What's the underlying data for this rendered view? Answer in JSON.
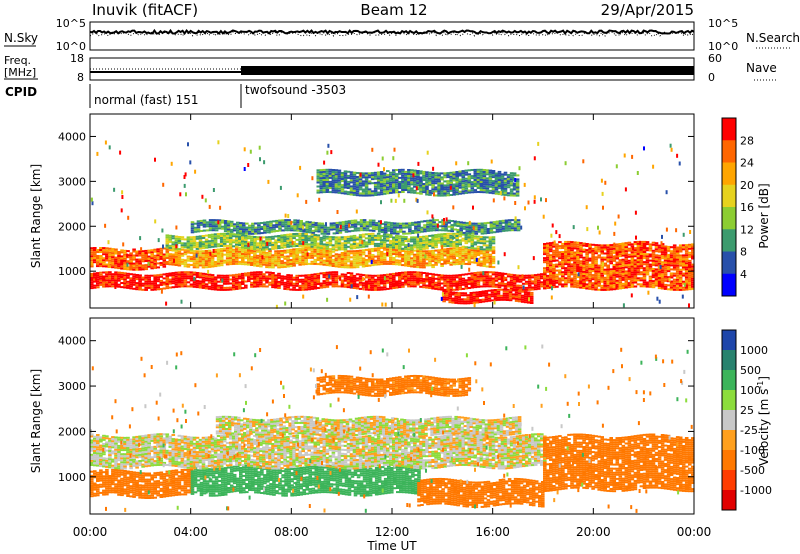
{
  "header": {
    "station": "Inuvik (fitACF)",
    "beam": "Beam 12",
    "date": "29/Apr/2015"
  },
  "top_panels": {
    "nsky_label": "N.Sky",
    "nsky_ticks": [
      "10^5",
      "10^0"
    ],
    "nsearch_label": "N.Search",
    "nsearch_ticks": [
      "10^5",
      "10^0"
    ],
    "freq_label_1": "Freq.",
    "freq_label_2": "[MHz]",
    "freq_ticks": [
      "18",
      "8"
    ],
    "nave_label": "Nave",
    "nave_ticks": [
      "60",
      "0"
    ],
    "cpid_label": "CPID",
    "modes": [
      {
        "name": "normal (fast) 151",
        "start_hour": 0,
        "end_hour": 6
      },
      {
        "name": "twofsound -3503",
        "start_hour": 6,
        "end_hour": 24
      }
    ]
  },
  "x_axis": {
    "label": "Time UT",
    "ticks": [
      "00:00",
      "04:00",
      "08:00",
      "12:00",
      "16:00",
      "20:00",
      "00:00"
    ]
  },
  "power_colorbar": {
    "label": "Power [dB]",
    "ticks": [
      "28",
      "24",
      "20",
      "16",
      "12",
      "8",
      "4"
    ],
    "colors": [
      "#ff0000",
      "#ff6600",
      "#ffa500",
      "#e6d21e",
      "#8ccd32",
      "#3c9b6e",
      "#2850aa",
      "#0000ff"
    ]
  },
  "velocity_colorbar": {
    "label": "Velocity [m s^-1]",
    "ticks": [
      "1000",
      "500",
      "100",
      "25",
      "-25",
      "-100",
      "-500",
      "-1000"
    ],
    "colors": [
      "#1e46aa",
      "#28826e",
      "#3cb45a",
      "#8cdc3c",
      "#c8c8c8",
      "#ffa01e",
      "#ff7800",
      "#ff3c00",
      "#e10000"
    ]
  },
  "chart_data": [
    {
      "type": "heatmap",
      "title": "Power",
      "xlabel": "Time UT",
      "ylabel": "Slant Range [km]",
      "x_unit": "hours UT",
      "xlim": [
        0,
        24
      ],
      "ylim": [
        180,
        4500
      ],
      "y_ticks": [
        1000,
        2000,
        3000,
        4000
      ],
      "z_label": "Power [dB]",
      "z_range": [
        0,
        32
      ],
      "bands": [
        {
          "t_start": 0,
          "t_end": 18,
          "range_low": 600,
          "range_high": 950,
          "power_db": 30
        },
        {
          "t_start": 0,
          "t_end": 3,
          "range_low": 1050,
          "range_high": 1500,
          "power_db": 26
        },
        {
          "t_start": 3,
          "t_end": 16,
          "range_low": 1100,
          "range_high": 1500,
          "power_db": 22
        },
        {
          "t_start": 3,
          "t_end": 16,
          "range_low": 1500,
          "range_high": 1800,
          "power_db": 14
        },
        {
          "t_start": 4,
          "t_end": 17,
          "range_low": 1850,
          "range_high": 2100,
          "power_db": 10
        },
        {
          "t_start": 14,
          "t_end": 17.5,
          "range_low": 300,
          "range_high": 550,
          "power_db": 30
        },
        {
          "t_start": 18,
          "t_end": 24,
          "range_low": 600,
          "range_high": 1600,
          "power_db": 27
        },
        {
          "t_start": 9,
          "t_end": 17,
          "range_low": 2700,
          "range_high": 3200,
          "power_db": 9
        }
      ]
    },
    {
      "type": "heatmap",
      "title": "Velocity",
      "xlabel": "Time UT",
      "ylabel": "Slant Range [km]",
      "x_unit": "hours UT",
      "xlim": [
        0,
        24
      ],
      "ylim": [
        180,
        4500
      ],
      "y_ticks": [
        1000,
        2000,
        3000,
        4000
      ],
      "z_label": "Velocity [m s^-1]",
      "z_range": [
        -1000,
        1000
      ],
      "bands": [
        {
          "t_start": 0,
          "t_end": 4,
          "range_low": 550,
          "range_high": 1100,
          "velocity": -200
        },
        {
          "t_start": 4,
          "t_end": 13,
          "range_low": 600,
          "range_high": 1200,
          "velocity": 300
        },
        {
          "t_start": 0,
          "t_end": 18,
          "range_low": 1200,
          "range_high": 1900,
          "velocity": 0
        },
        {
          "t_start": 5,
          "t_end": 17,
          "range_low": 1900,
          "range_high": 2300,
          "velocity": 0
        },
        {
          "t_start": 13,
          "t_end": 18,
          "range_low": 350,
          "range_high": 900,
          "velocity": -250
        },
        {
          "t_start": 18,
          "t_end": 24,
          "range_low": 700,
          "range_high": 1900,
          "velocity": -350
        },
        {
          "t_start": 9,
          "t_end": 15,
          "range_low": 2800,
          "range_high": 3200,
          "velocity": -150
        }
      ]
    }
  ]
}
